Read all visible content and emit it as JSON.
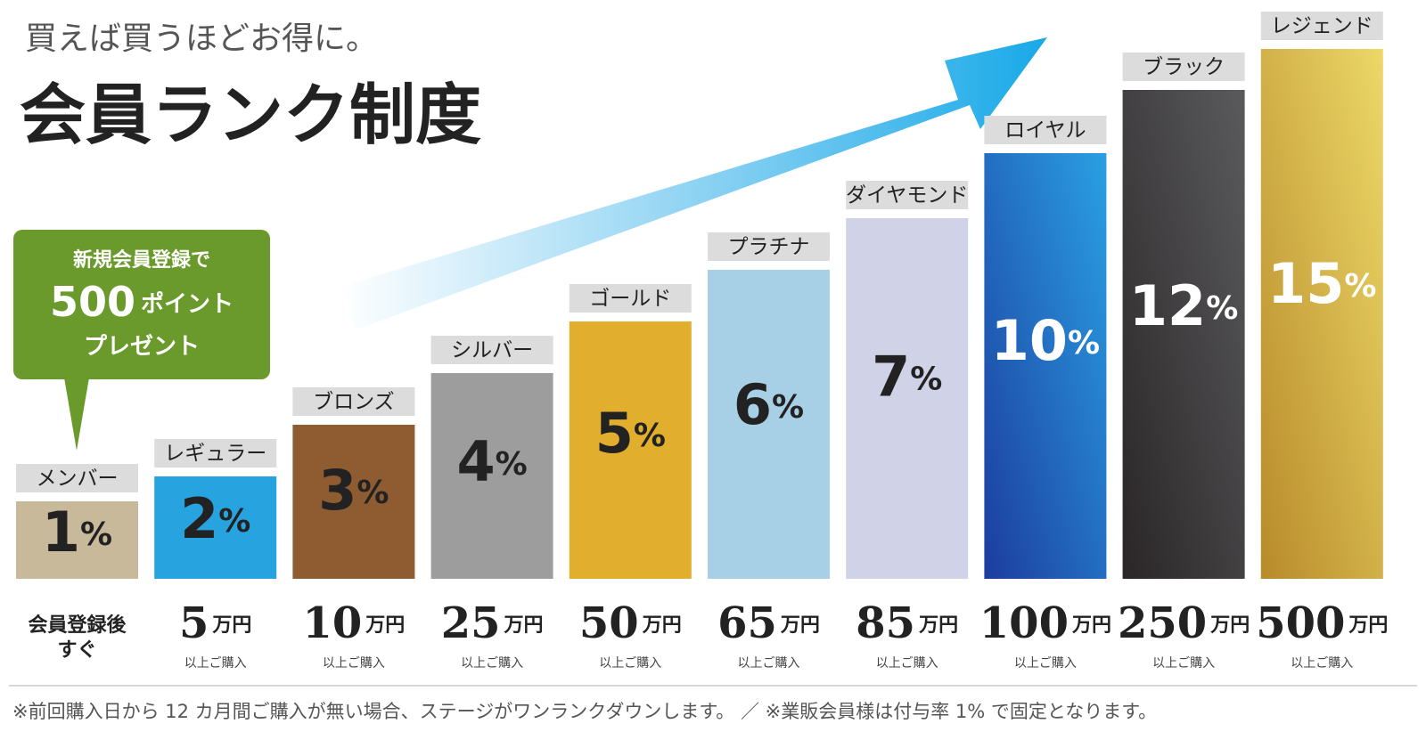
{
  "header": {
    "subtitle": "買えば買うほどお得に。",
    "title": "会員ランク制度"
  },
  "callout": {
    "line1": "新規会員登録で",
    "points": "500",
    "points_unit": "ポイント",
    "line2": "プレゼント"
  },
  "chart_data": {
    "type": "bar",
    "categories": [
      "メンバー",
      "レギュラー",
      "ブロンズ",
      "シルバー",
      "ゴールド",
      "プラチナ",
      "ダイヤモンド",
      "ロイヤル",
      "ブラック",
      "レジェンド"
    ],
    "values": [
      1,
      2,
      3,
      4,
      5,
      6,
      7,
      10,
      12,
      15
    ],
    "value_labels": [
      "1%",
      "2%",
      "3%",
      "4%",
      "5%",
      "6%",
      "7%",
      "10%",
      "12%",
      "15%"
    ],
    "colors": [
      "#c8b99b",
      "#27a3e0",
      "#8f5c31",
      "#9c9d9c",
      "#e1ae2e",
      "#a7cfe6",
      "#d0d3e8",
      [
        "#1c3c9e",
        "#2aa0e3"
      ],
      [
        "#2a2627",
        "#5a5a5c"
      ],
      [
        "#b88a2a",
        "#ecd868"
      ]
    ]
  },
  "requirements": {
    "first_lines": [
      "会員登録後",
      "すぐ"
    ],
    "amounts": [
      5,
      10,
      25,
      50,
      65,
      85,
      100,
      250,
      500
    ],
    "unit": "万円",
    "note": "以上ご購入"
  },
  "footnote": "※前回購入日から 12 カ月間ご購入が無い場合、ステージがワンランクダウンします。 ／ ※業販会員様は付与率 1% で固定となります。"
}
